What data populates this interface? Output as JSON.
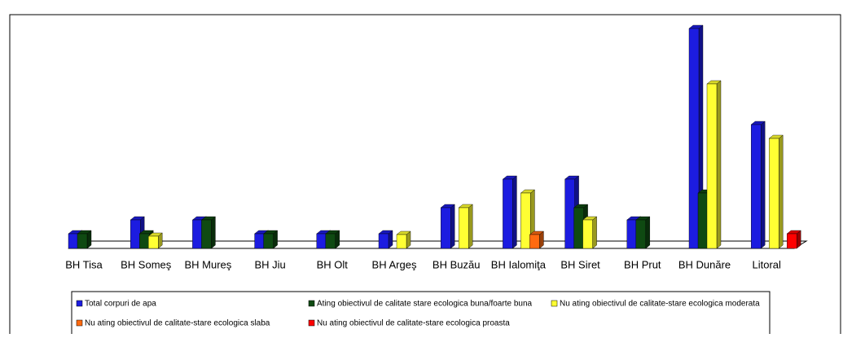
{
  "chart_data": {
    "type": "bar3d",
    "categories": [
      "BH Tisa",
      "BH Someş",
      "BH Mureş",
      "BH Jiu",
      "BH Olt",
      "BH Argeş",
      "BH Buzău",
      "BH Ialomiţa",
      "BH Siret",
      "BH Prut",
      "BH Dunăre",
      "Litoral"
    ],
    "series": [
      {
        "name": "Total corpuri de apa",
        "color": "#1c1ce0",
        "values": [
          18,
          35,
          35,
          18,
          18,
          18,
          50,
          85,
          85,
          35,
          270,
          152
        ]
      },
      {
        "name": "Ating obiectivul de calitate stare ecologica buna/foarte buna",
        "color": "#0f4a12",
        "values": [
          18,
          18,
          35,
          18,
          18,
          0,
          0,
          0,
          50,
          35,
          68,
          0
        ]
      },
      {
        "name": "Nu ating obiectivul de calitate-stare ecologica moderata",
        "color": "#ffff33",
        "values": [
          0,
          15,
          0,
          0,
          0,
          17,
          50,
          68,
          35,
          0,
          202,
          135
        ]
      },
      {
        "name": "Nu ating obiectivul de calitate-stare ecologica slaba",
        "color": "#ff6a10",
        "values": [
          0,
          0,
          0,
          0,
          0,
          0,
          0,
          17,
          0,
          0,
          0,
          0
        ]
      },
      {
        "name": "Nu ating obiectivul de calitate-stare ecologica proasta",
        "color": "#ff0000",
        "values": [
          0,
          0,
          0,
          0,
          0,
          0,
          0,
          0,
          0,
          0,
          0,
          18
        ]
      }
    ],
    "ylim": [
      0,
      280
    ]
  }
}
